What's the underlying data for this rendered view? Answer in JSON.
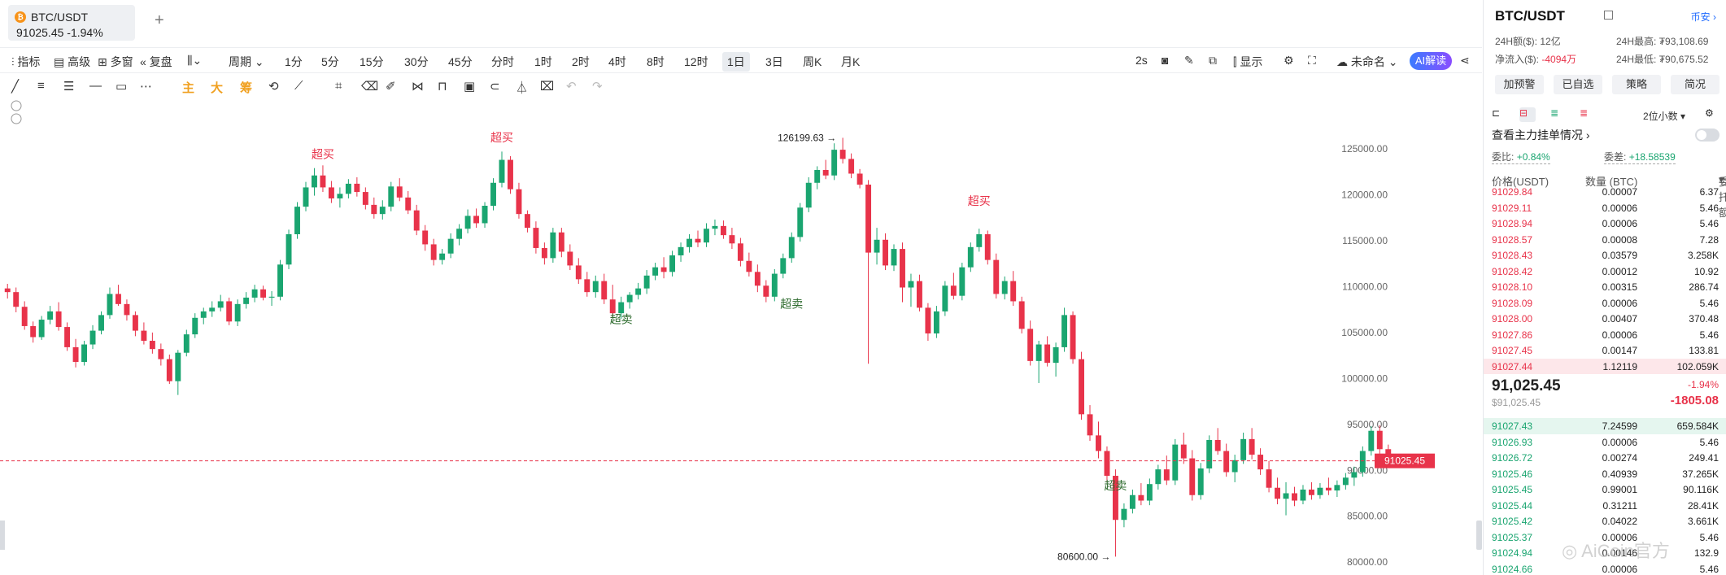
{
  "tab": {
    "symbol": "BTC/USDT",
    "price": "91025.45",
    "change": "-1.94%",
    "add": "+"
  },
  "toolbar1": {
    "indicators": "指标",
    "advanced": "高级",
    "multi_window": "多窗",
    "replay": "复盘",
    "period": "周期",
    "intervals": [
      "1分",
      "5分",
      "15分",
      "30分",
      "45分",
      "分时",
      "1时",
      "2时",
      "4时",
      "8时",
      "12时",
      "1日",
      "3日",
      "周K",
      "月K"
    ],
    "active_interval": "1日",
    "refresh": "2s",
    "display": "显示",
    "layout_name": "未命名",
    "ai": "AI解读"
  },
  "toolbar2": {
    "main": "主",
    "big": "大",
    "chip": "筹"
  },
  "chart_data": {
    "type": "candlestick",
    "title": "",
    "y_ticks": [
      125000.0,
      120000.0,
      115000.0,
      110000.0,
      105000.0,
      100000.0,
      95000.0,
      90000.0,
      85000.0,
      80000.0
    ],
    "ylim": [
      78600,
      130400
    ],
    "last_price": "91025.45",
    "last_price_value": 91025.45,
    "high_label": "126199.63",
    "high_value": 126199.63,
    "low_label": "80600.00",
    "low_value": 80600.0,
    "signals": [
      {
        "label": "超买",
        "kind": "sell",
        "index": 37,
        "price": 124000
      },
      {
        "label": "超买",
        "kind": "sell",
        "index": 58,
        "price": 125800
      },
      {
        "label": "超卖",
        "kind": "buy",
        "index": 72,
        "price": 106000
      },
      {
        "label": "超卖",
        "kind": "buy",
        "index": 92,
        "price": 107700
      },
      {
        "label": "超买",
        "kind": "sell",
        "index": 114,
        "price": 118900
      },
      {
        "label": "超卖",
        "kind": "buy",
        "index": 130,
        "price": 87900
      }
    ],
    "candles": [
      [
        109800,
        110300,
        108700,
        109400
      ],
      [
        109400,
        109900,
        107200,
        107800
      ],
      [
        107800,
        108400,
        105300,
        105700
      ],
      [
        105700,
        106200,
        103900,
        104500
      ],
      [
        104500,
        106800,
        104200,
        106400
      ],
      [
        106400,
        107900,
        105900,
        107300
      ],
      [
        107300,
        108300,
        105200,
        105600
      ],
      [
        105600,
        106100,
        103000,
        103400
      ],
      [
        103400,
        104300,
        101200,
        101800
      ],
      [
        101800,
        104100,
        101400,
        103700
      ],
      [
        103700,
        105800,
        103200,
        105200
      ],
      [
        105200,
        107300,
        104800,
        106900
      ],
      [
        106900,
        109900,
        106500,
        109200
      ],
      [
        109200,
        110200,
        107900,
        108100
      ],
      [
        108100,
        108600,
        106300,
        106900
      ],
      [
        106900,
        107300,
        104600,
        105200
      ],
      [
        105200,
        106100,
        103700,
        104100
      ],
      [
        104100,
        105000,
        102700,
        103200
      ],
      [
        103200,
        103800,
        101400,
        102100
      ],
      [
        102100,
        102600,
        99400,
        99700
      ],
      [
        99700,
        103100,
        98200,
        102800
      ],
      [
        102800,
        105300,
        102400,
        104800
      ],
      [
        104800,
        107100,
        104400,
        106600
      ],
      [
        106600,
        107700,
        105900,
        107300
      ],
      [
        107300,
        108400,
        106700,
        107700
      ],
      [
        107700,
        109100,
        107300,
        108400
      ],
      [
        108400,
        108800,
        105800,
        106200
      ],
      [
        106200,
        108600,
        105700,
        108100
      ],
      [
        108100,
        109400,
        107600,
        108800
      ],
      [
        108800,
        110200,
        108300,
        109700
      ],
      [
        109700,
        110100,
        108500,
        108800
      ],
      [
        108800,
        109500,
        107900,
        108900
      ],
      [
        108900,
        112900,
        108500,
        112400
      ],
      [
        112400,
        116200,
        111900,
        115700
      ],
      [
        115700,
        119200,
        115200,
        118700
      ],
      [
        118700,
        121400,
        118200,
        120800
      ],
      [
        120800,
        122900,
        119900,
        122100
      ],
      [
        122100,
        123200,
        120300,
        120800
      ],
      [
        120800,
        121500,
        119100,
        119600
      ],
      [
        119600,
        120800,
        118600,
        120100
      ],
      [
        120100,
        121700,
        119600,
        121200
      ],
      [
        121200,
        121900,
        119800,
        120300
      ],
      [
        120300,
        120800,
        118400,
        118900
      ],
      [
        118900,
        119700,
        117400,
        117900
      ],
      [
        117900,
        119400,
        117300,
        118700
      ],
      [
        118700,
        121400,
        118200,
        120900
      ],
      [
        120900,
        121800,
        119300,
        119700
      ],
      [
        119700,
        120400,
        117900,
        118300
      ],
      [
        118300,
        118900,
        115600,
        116100
      ],
      [
        116100,
        116700,
        113900,
        114600
      ],
      [
        114600,
        115200,
        112300,
        112900
      ],
      [
        112900,
        114100,
        112400,
        113600
      ],
      [
        113600,
        115800,
        113100,
        115200
      ],
      [
        115200,
        116800,
        114500,
        116300
      ],
      [
        116300,
        118400,
        115800,
        117700
      ],
      [
        117700,
        118500,
        116400,
        116900
      ],
      [
        116900,
        119200,
        116400,
        118800
      ],
      [
        118800,
        121800,
        118300,
        121300
      ],
      [
        121300,
        124700,
        120800,
        123800
      ],
      [
        123800,
        124200,
        120100,
        120600
      ],
      [
        120600,
        121300,
        117400,
        117900
      ],
      [
        117900,
        118300,
        115900,
        116400
      ],
      [
        116400,
        117100,
        113600,
        114200
      ],
      [
        114200,
        114800,
        112400,
        113100
      ],
      [
        113100,
        116400,
        112600,
        115900
      ],
      [
        115900,
        116400,
        113200,
        113800
      ],
      [
        113800,
        114600,
        111800,
        112300
      ],
      [
        112300,
        113100,
        110300,
        110800
      ],
      [
        110800,
        111600,
        108900,
        109400
      ],
      [
        109400,
        111200,
        108800,
        110600
      ],
      [
        110600,
        111400,
        108100,
        108600
      ],
      [
        108600,
        110200,
        106600,
        107100
      ],
      [
        107100,
        108900,
        106500,
        108300
      ],
      [
        108300,
        109400,
        107600,
        109100
      ],
      [
        109100,
        110400,
        108600,
        109800
      ],
      [
        109800,
        111800,
        109200,
        111200
      ],
      [
        111200,
        112600,
        110700,
        112100
      ],
      [
        112100,
        113200,
        110900,
        111600
      ],
      [
        111600,
        113900,
        111100,
        113400
      ],
      [
        113400,
        114800,
        112700,
        114300
      ],
      [
        114300,
        115700,
        113700,
        115200
      ],
      [
        115200,
        116100,
        114300,
        114800
      ],
      [
        114800,
        116900,
        114300,
        116300
      ],
      [
        116300,
        117300,
        115600,
        116600
      ],
      [
        116600,
        117200,
        115200,
        115600
      ],
      [
        115600,
        116400,
        114100,
        114700
      ],
      [
        114700,
        115300,
        112200,
        112800
      ],
      [
        112800,
        113700,
        111100,
        111600
      ],
      [
        111600,
        112400,
        109400,
        110100
      ],
      [
        110100,
        110700,
        108300,
        108900
      ],
      [
        108900,
        111900,
        108400,
        111400
      ],
      [
        111400,
        113600,
        110900,
        113100
      ],
      [
        113100,
        115900,
        112600,
        115400
      ],
      [
        115400,
        119100,
        114900,
        118600
      ],
      [
        118600,
        121900,
        118100,
        121300
      ],
      [
        121300,
        123100,
        120600,
        122700
      ],
      [
        122700,
        123800,
        121700,
        122100
      ],
      [
        122100,
        125600,
        121600,
        124900
      ],
      [
        124900,
        126200,
        123400,
        123900
      ],
      [
        123900,
        124500,
        121800,
        122300
      ],
      [
        122300,
        122800,
        120700,
        121100
      ],
      [
        121100,
        121600,
        101600,
        113700
      ],
      [
        113700,
        116400,
        112400,
        115100
      ],
      [
        115100,
        115800,
        111800,
        112300
      ],
      [
        112300,
        114600,
        111700,
        114100
      ],
      [
        114100,
        114800,
        108300,
        109900
      ],
      [
        109900,
        111400,
        107800,
        110600
      ],
      [
        110600,
        111300,
        107300,
        107700
      ],
      [
        107700,
        108200,
        104100,
        104900
      ],
      [
        104900,
        107900,
        104400,
        107300
      ],
      [
        107300,
        110600,
        106800,
        110100
      ],
      [
        110100,
        111500,
        108600,
        109000
      ],
      [
        109000,
        112600,
        108500,
        112100
      ],
      [
        112100,
        114800,
        111600,
        114300
      ],
      [
        114300,
        116300,
        113800,
        115700
      ],
      [
        115700,
        116100,
        112400,
        112900
      ],
      [
        112900,
        113600,
        108700,
        109200
      ],
      [
        109200,
        111100,
        108600,
        110600
      ],
      [
        110600,
        111700,
        107900,
        108400
      ],
      [
        108400,
        108900,
        104900,
        105400
      ],
      [
        105400,
        106300,
        101400,
        101900
      ],
      [
        101900,
        104100,
        99500,
        103700
      ],
      [
        103700,
        104600,
        101300,
        101700
      ],
      [
        101700,
        103900,
        100200,
        103400
      ],
      [
        103400,
        107700,
        102900,
        106900
      ],
      [
        106900,
        107300,
        101600,
        102100
      ],
      [
        102100,
        102900,
        95500,
        96100
      ],
      [
        96100,
        97100,
        93200,
        93800
      ],
      [
        93800,
        95300,
        91300,
        92100
      ],
      [
        92100,
        92600,
        88700,
        89400
      ],
      [
        89400,
        90100,
        80600,
        84600
      ],
      [
        84600,
        86400,
        83800,
        85800
      ],
      [
        85800,
        87900,
        85300,
        87300
      ],
      [
        87300,
        88600,
        86200,
        86700
      ],
      [
        86700,
        89100,
        86200,
        88500
      ],
      [
        88500,
        90600,
        87900,
        90100
      ],
      [
        90100,
        91600,
        88400,
        88900
      ],
      [
        88900,
        93400,
        88400,
        92800
      ],
      [
        92800,
        94100,
        90700,
        91300
      ],
      [
        91300,
        92200,
        86700,
        87300
      ],
      [
        87300,
        90800,
        86800,
        90200
      ],
      [
        90200,
        93800,
        89700,
        93300
      ],
      [
        93300,
        94600,
        91700,
        92100
      ],
      [
        92100,
        92900,
        89300,
        89800
      ],
      [
        89800,
        91700,
        88700,
        91100
      ],
      [
        91100,
        94100,
        90700,
        93400
      ],
      [
        93400,
        94600,
        91200,
        91700
      ],
      [
        91700,
        92400,
        89500,
        90100
      ],
      [
        90100,
        91000,
        87600,
        88100
      ],
      [
        88100,
        89200,
        86300,
        86900
      ],
      [
        86900,
        88700,
        85100,
        87500
      ],
      [
        87500,
        88200,
        86100,
        86700
      ],
      [
        86700,
        88400,
        86300,
        87900
      ],
      [
        87900,
        88700,
        86800,
        87300
      ],
      [
        87300,
        88600,
        86900,
        88100
      ],
      [
        88100,
        89200,
        87300,
        87800
      ],
      [
        87800,
        88900,
        87100,
        88400
      ],
      [
        88400,
        89700,
        87900,
        89200
      ],
      [
        89200,
        90400,
        88300,
        89800
      ],
      [
        89800,
        92600,
        89300,
        92100
      ],
      [
        92100,
        94800,
        91600,
        94300
      ],
      [
        94300,
        94900,
        91800,
        92300
      ],
      [
        92300,
        92800,
        90600,
        91025.45
      ]
    ]
  },
  "right": {
    "symbol": "BTC/USDT",
    "exchange": "币安",
    "vol_label": "24H额($):",
    "vol": "12亿",
    "high_label": "24H最高:",
    "high": "₮93,108.69",
    "net_label": "净流入($):",
    "net": "-4094万",
    "low_label": "24H最低:",
    "low": "₮90,675.52",
    "buttons": [
      "加预警",
      "已自选",
      "策略",
      "简况"
    ],
    "decimals": "2位小数",
    "section": "查看主力挂单情况",
    "ratio_label": "委比:",
    "ratio": "+0.84%",
    "diff_label": "委差:",
    "diff": "+18.58539",
    "cols": [
      "价格(USDT)",
      "数量 (BTC)",
      "委托额"
    ],
    "asks": [
      [
        "91029.84",
        "0.00007",
        "6.37"
      ],
      [
        "91029.11",
        "0.00006",
        "5.46"
      ],
      [
        "91028.94",
        "0.00006",
        "5.46"
      ],
      [
        "91028.57",
        "0.00008",
        "7.28"
      ],
      [
        "91028.43",
        "0.03579",
        "3.258K"
      ],
      [
        "91028.42",
        "0.00012",
        "10.92"
      ],
      [
        "91028.10",
        "0.00315",
        "286.74"
      ],
      [
        "91028.09",
        "0.00006",
        "5.46"
      ],
      [
        "91028.00",
        "0.00407",
        "370.48"
      ],
      [
        "91027.86",
        "0.00006",
        "5.46"
      ],
      [
        "91027.45",
        "0.00147",
        "133.81"
      ],
      [
        "91027.44",
        "1.12119",
        "102.059K"
      ]
    ],
    "last": "91,025.45",
    "last_usd": "$91,025.45",
    "pct": "-1.94%",
    "chg": "-1805.08",
    "bids": [
      [
        "91027.43",
        "7.24599",
        "659.584K"
      ],
      [
        "91026.93",
        "0.00006",
        "5.46"
      ],
      [
        "91026.72",
        "0.00274",
        "249.41"
      ],
      [
        "91025.46",
        "0.40939",
        "37.265K"
      ],
      [
        "91025.45",
        "0.99001",
        "90.116K"
      ],
      [
        "91025.44",
        "0.31211",
        "28.41K"
      ],
      [
        "91025.42",
        "0.04022",
        "3.661K"
      ],
      [
        "91025.37",
        "0.00006",
        "5.46"
      ],
      [
        "91024.94",
        "0.00146",
        "132.9"
      ],
      [
        "91024.66",
        "0.00006",
        "5.46"
      ]
    ],
    "watermark": "AiCoin官方"
  },
  "colors": {
    "up": "#1aa570",
    "down": "#e8334a",
    "accent": "#1f6bff"
  }
}
